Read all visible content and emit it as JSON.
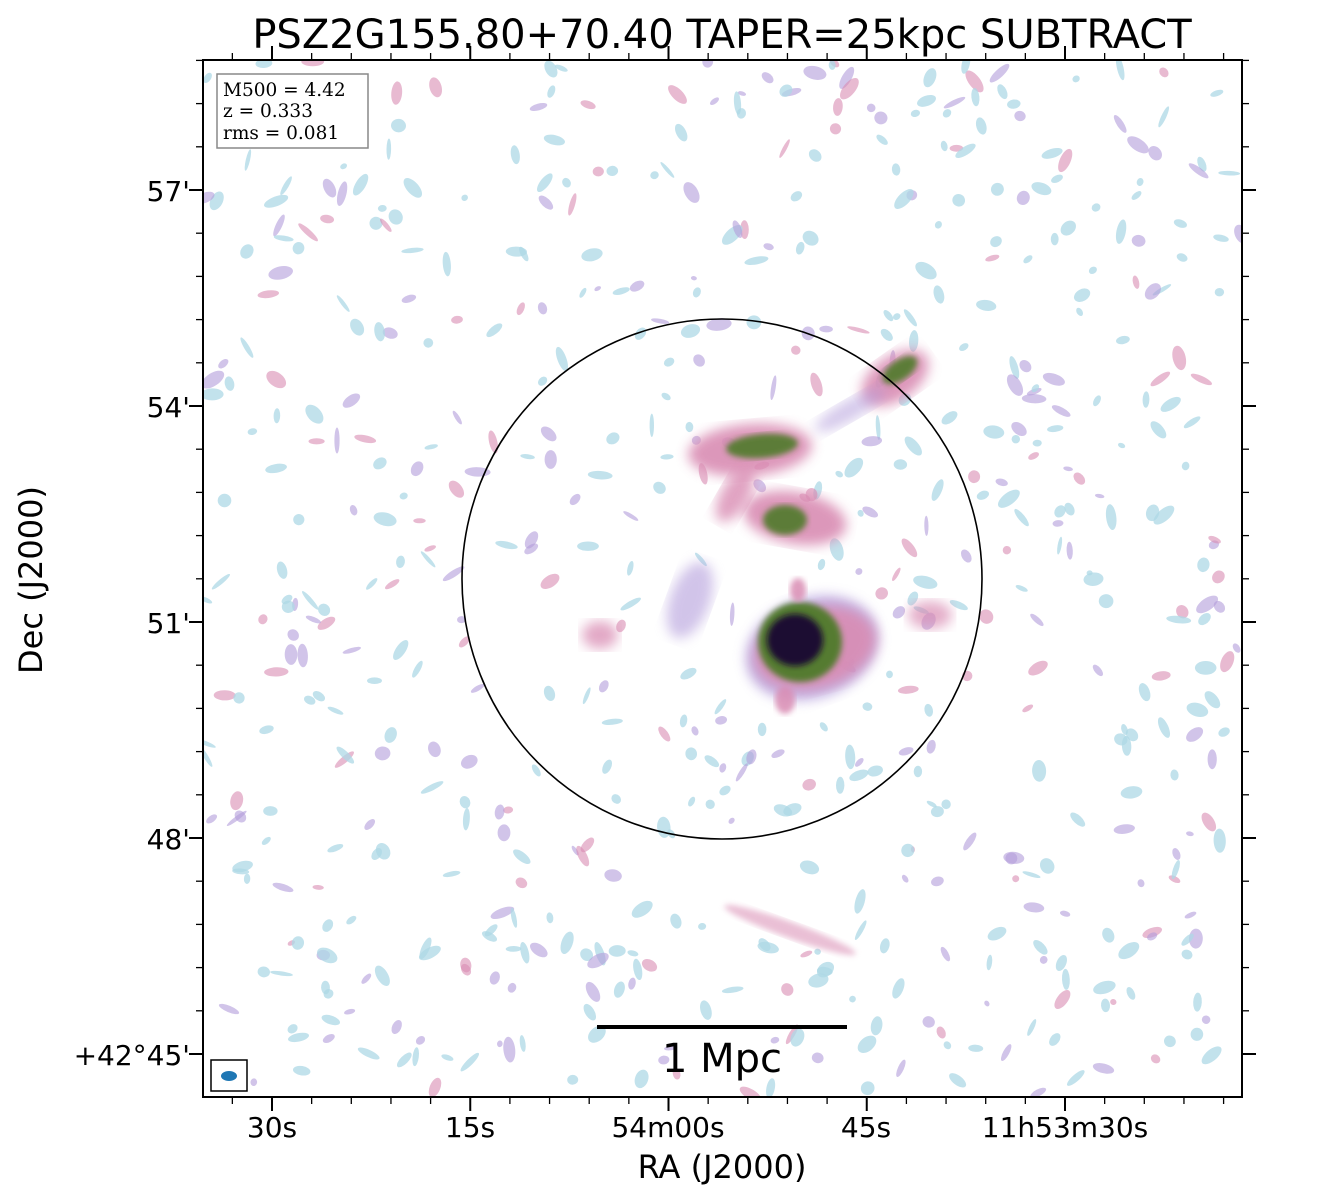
{
  "chart_data": {
    "type": "heatmap",
    "title": "PSZ2G155.80+70.40 TAPER=25kpc SUBTRACT",
    "xlabel": "RA (J2000)",
    "ylabel": "Dec (J2000)",
    "x_tick_labels": [
      "30s",
      "15s",
      "54m00s",
      "45s",
      "11h53m30s"
    ],
    "y_tick_labels": [
      "+42°45'",
      "48'",
      "51'",
      "54'",
      "57'"
    ],
    "info_box": [
      "M500 = 4.42",
      "z = 0.333",
      "rms = 0.081"
    ],
    "scalebar_label": "1 Mpc",
    "colormap": "cubehelix_r",
    "colors": {
      "faint": "#add8e6",
      "low": "#b39ddb",
      "mid": "#d98cb3",
      "high": "#4f7a2a",
      "peak": "#1a1030",
      "circle": "#000000",
      "beam": "#1f77b4"
    },
    "emission_sources": [
      {
        "name": "core",
        "peak": 1.0
      },
      {
        "name": "north-arc",
        "peak": 0.6
      },
      {
        "name": "middle-knot",
        "peak": 0.55
      },
      {
        "name": "ne-relic",
        "peak": 0.65
      }
    ]
  }
}
